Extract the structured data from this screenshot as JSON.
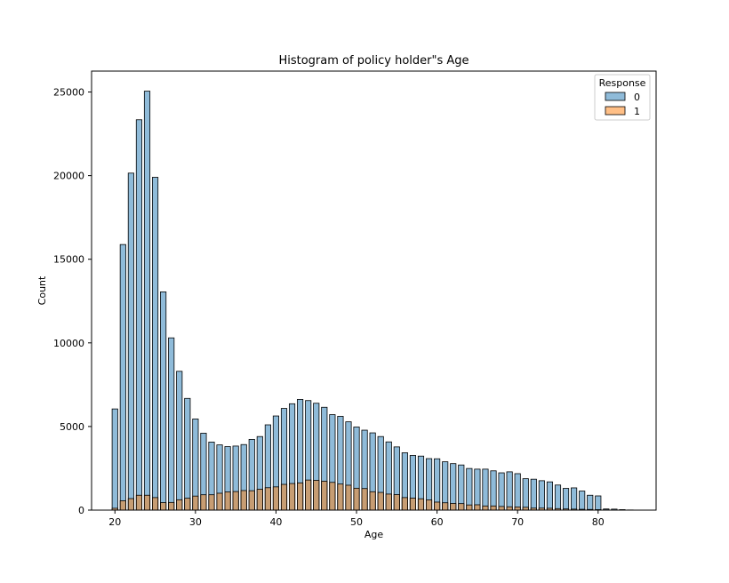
{
  "chart_data": {
    "type": "bar",
    "title": "Histogram of policy holder\"s Age",
    "xlabel": "Age",
    "ylabel": "Count",
    "xlim": [
      17.1,
      87.2
    ],
    "ylim": [
      0,
      26250
    ],
    "xticks": [
      20,
      30,
      40,
      50,
      60,
      70,
      80
    ],
    "yticks": [
      0,
      5000,
      10000,
      15000,
      20000,
      25000
    ],
    "x": [
      20,
      21,
      22,
      23,
      24,
      25,
      26,
      27,
      28,
      29,
      30,
      31,
      32,
      33,
      34,
      35,
      36,
      37,
      38,
      39,
      40,
      41,
      42,
      43,
      44,
      45,
      46,
      47,
      48,
      49,
      50,
      51,
      52,
      53,
      54,
      55,
      56,
      57,
      58,
      59,
      60,
      61,
      62,
      63,
      64,
      65,
      66,
      67,
      68,
      69,
      70,
      71,
      72,
      73,
      74,
      75,
      76,
      77,
      78,
      79,
      80,
      81,
      82,
      83,
      84,
      85
    ],
    "series": [
      {
        "name": "0",
        "color": "#1f77b4",
        "values": [
          6050,
          15880,
          20150,
          23340,
          25050,
          19900,
          13050,
          10300,
          8300,
          6680,
          5450,
          4600,
          4070,
          3900,
          3800,
          3830,
          3920,
          4230,
          4400,
          5100,
          5630,
          6080,
          6360,
          6620,
          6550,
          6390,
          6150,
          5710,
          5610,
          5280,
          4970,
          4780,
          4620,
          4400,
          4080,
          3780,
          3430,
          3270,
          3230,
          3080,
          3070,
          2890,
          2780,
          2700,
          2490,
          2450,
          2450,
          2350,
          2230,
          2290,
          2180,
          1880,
          1850,
          1760,
          1690,
          1500,
          1300,
          1330,
          1140,
          890,
          850,
          70,
          60,
          30,
          10,
          5
        ]
      },
      {
        "name": "1",
        "color": "#ff7f0e",
        "values": [
          110,
          560,
          690,
          890,
          890,
          750,
          450,
          460,
          620,
          710,
          840,
          920,
          920,
          1010,
          1090,
          1110,
          1170,
          1160,
          1250,
          1340,
          1390,
          1540,
          1590,
          1630,
          1800,
          1780,
          1730,
          1660,
          1560,
          1490,
          1310,
          1290,
          1100,
          1060,
          960,
          930,
          750,
          720,
          680,
          610,
          480,
          440,
          400,
          390,
          310,
          320,
          250,
          250,
          220,
          200,
          190,
          170,
          120,
          120,
          110,
          90,
          70,
          60,
          50,
          40,
          30,
          20,
          10,
          5,
          2,
          1
        ]
      }
    ],
    "legend": {
      "title": "Response",
      "entries": [
        "0",
        "1"
      ],
      "placement": "top-right"
    },
    "grid": false
  }
}
